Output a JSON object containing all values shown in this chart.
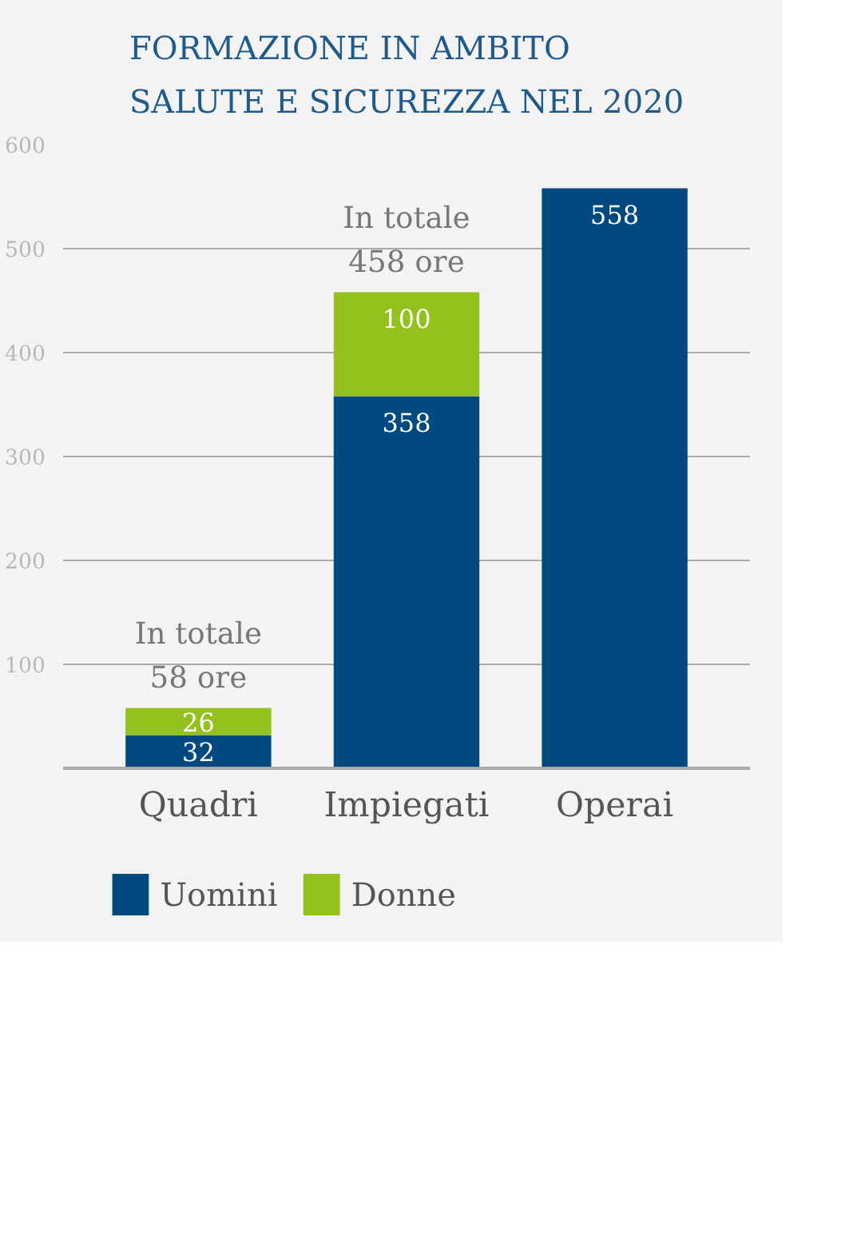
{
  "chart_data": {
    "type": "bar",
    "title": "FORMAZIONE IN AMBITO SALUTE E SICUREZZA NEL 2020",
    "categories": [
      "Quadri",
      "Impiegati",
      "Operai"
    ],
    "stacked": true,
    "series": [
      {
        "name": "Uomini",
        "color": "#004a80",
        "values": [
          32,
          358,
          558
        ]
      },
      {
        "name": "Donne",
        "color": "#95c11f",
        "values": [
          26,
          100,
          null
        ]
      }
    ],
    "ylim": [
      0,
      600
    ],
    "yticks": [
      100,
      200,
      300,
      400,
      500,
      600
    ],
    "grid": "y",
    "legend": "bottom",
    "data_labels": true,
    "totals": [
      "In totale\n58 ore",
      "In totale\n458 ore",
      null
    ]
  }
}
